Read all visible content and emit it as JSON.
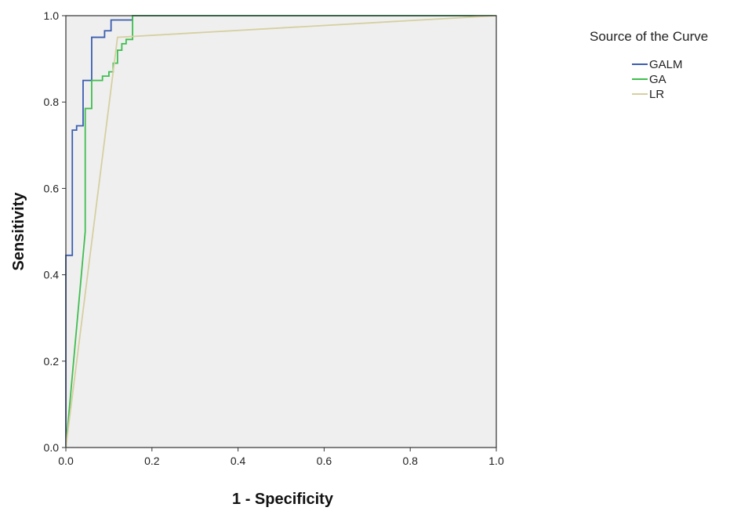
{
  "chart_data": {
    "type": "line",
    "title": "",
    "xlabel": "1 - Specificity",
    "ylabel": "Sensitivity",
    "xlim": [
      0,
      1
    ],
    "ylim": [
      0,
      1
    ],
    "x_ticks": [
      "0.0",
      "0.2",
      "0.4",
      "0.6",
      "0.8",
      "1.0"
    ],
    "y_ticks": [
      "0.0",
      "0.2",
      "0.4",
      "0.6",
      "0.8",
      "1.0"
    ],
    "grid": false,
    "background": "#efefef",
    "legend": {
      "title": "Source of the Curve",
      "placement": "right"
    },
    "series": [
      {
        "name": "GALM",
        "color": "#3b5eb0",
        "points": [
          [
            0,
            0
          ],
          [
            0,
            0.445
          ],
          [
            0.015,
            0.445
          ],
          [
            0.015,
            0.735
          ],
          [
            0.025,
            0.735
          ],
          [
            0.025,
            0.745
          ],
          [
            0.04,
            0.745
          ],
          [
            0.04,
            0.85
          ],
          [
            0.06,
            0.85
          ],
          [
            0.06,
            0.95
          ],
          [
            0.09,
            0.95
          ],
          [
            0.09,
            0.965
          ],
          [
            0.105,
            0.965
          ],
          [
            0.105,
            0.99
          ],
          [
            0.155,
            0.99
          ],
          [
            0.155,
            1.0
          ],
          [
            1.0,
            1.0
          ]
        ]
      },
      {
        "name": "GA",
        "color": "#3fbe4f",
        "points": [
          [
            0,
            0
          ],
          [
            0.045,
            0.5
          ],
          [
            0.045,
            0.785
          ],
          [
            0.06,
            0.785
          ],
          [
            0.06,
            0.85
          ],
          [
            0.085,
            0.85
          ],
          [
            0.085,
            0.86
          ],
          [
            0.1,
            0.86
          ],
          [
            0.1,
            0.87
          ],
          [
            0.11,
            0.87
          ],
          [
            0.11,
            0.89
          ],
          [
            0.12,
            0.89
          ],
          [
            0.12,
            0.92
          ],
          [
            0.13,
            0.92
          ],
          [
            0.13,
            0.935
          ],
          [
            0.14,
            0.935
          ],
          [
            0.14,
            0.945
          ],
          [
            0.155,
            0.945
          ],
          [
            0.155,
            1.0
          ],
          [
            1.0,
            1.0
          ]
        ]
      },
      {
        "name": "LR",
        "color": "#d6cfa0",
        "points": [
          [
            0,
            0
          ],
          [
            0.12,
            0.95
          ],
          [
            1.0,
            1.0
          ]
        ]
      }
    ]
  }
}
